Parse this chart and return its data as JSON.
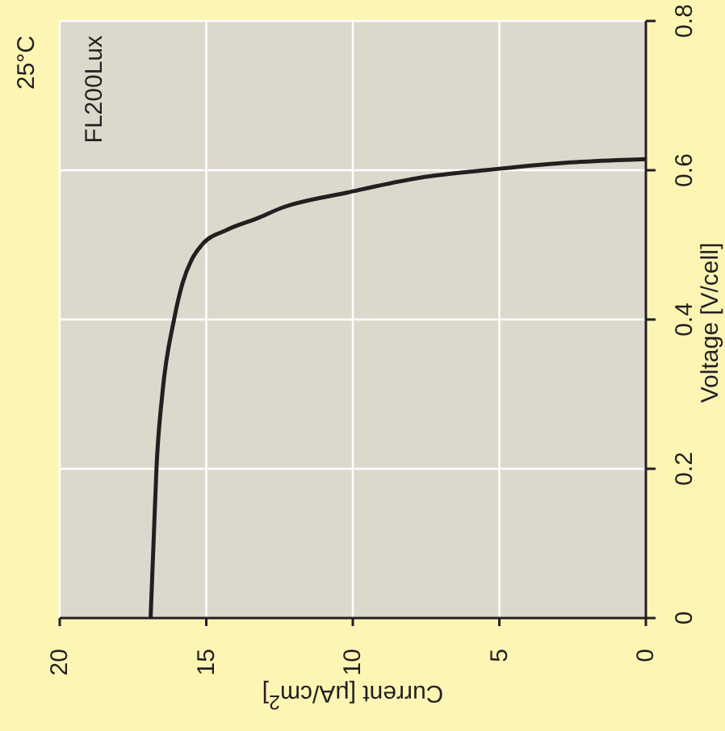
{
  "chart_data": {
    "type": "line",
    "xlabel": "Current [μA/cm$^{2}$]",
    "ylabel": "Voltage [V/cell]",
    "annotations": [
      "25°C",
      "FL200Lux"
    ],
    "xlim": [
      20,
      0
    ],
    "xticks": [
      20,
      15,
      10,
      5,
      0
    ],
    "ylim": [
      0,
      0.8
    ],
    "yticks": [
      0,
      0.2,
      0.4,
      0.6,
      0.8
    ],
    "grid": true,
    "legend": false,
    "marker": "none",
    "series": [
      {
        "color": "#231f20",
        "x": [
          16.9,
          16.8,
          16.7,
          16.5,
          16.1,
          15.8,
          15.5,
          15.15,
          14.3,
          13.3,
          12.4,
          10.2,
          7.7,
          5.5,
          2.75,
          0
        ],
        "values": [
          0,
          0.1,
          0.2,
          0.3,
          0.4,
          0.45,
          0.48,
          0.5,
          0.52,
          0.535,
          0.55,
          0.57,
          0.59,
          0.6,
          0.61,
          0.615
        ]
      }
    ]
  }
}
